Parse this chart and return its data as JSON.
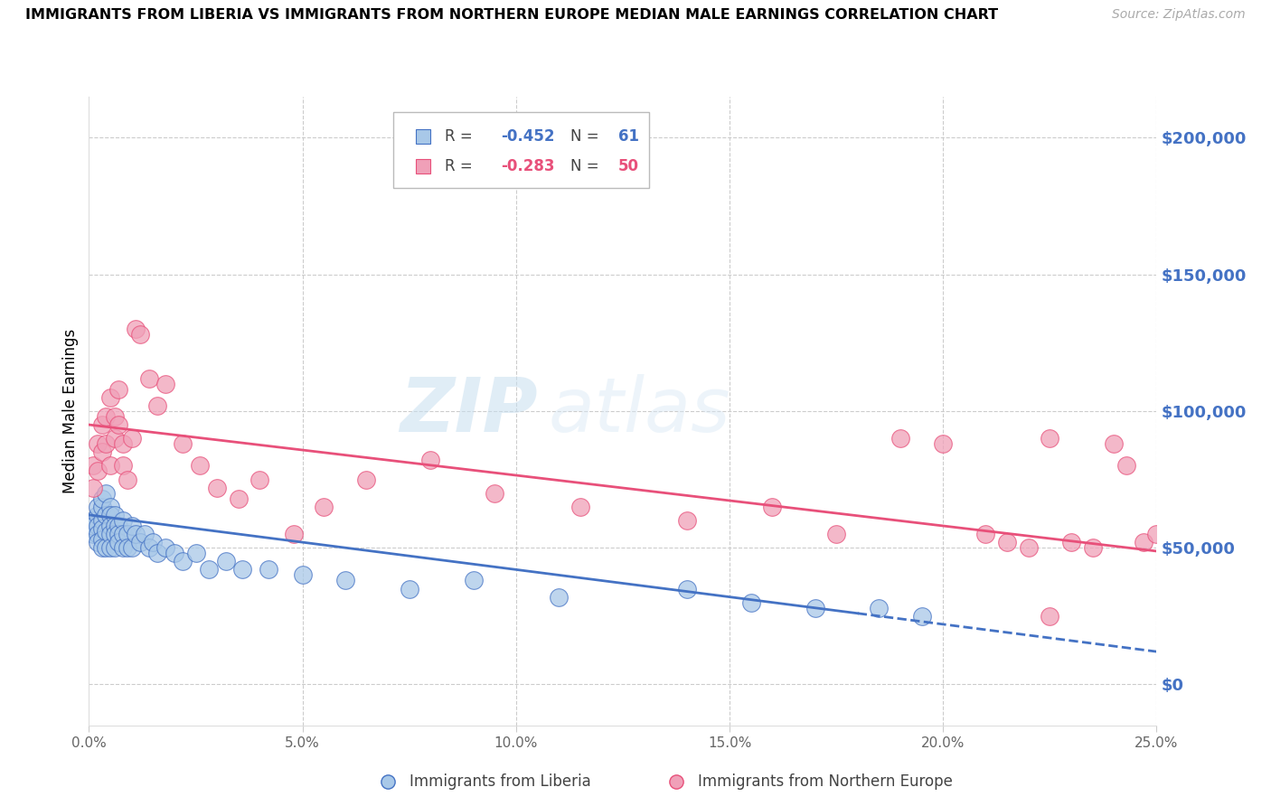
{
  "title": "IMMIGRANTS FROM LIBERIA VS IMMIGRANTS FROM NORTHERN EUROPE MEDIAN MALE EARNINGS CORRELATION CHART",
  "source": "Source: ZipAtlas.com",
  "ylabel": "Median Male Earnings",
  "r_liberia": -0.452,
  "n_liberia": 61,
  "r_northern": -0.283,
  "n_northern": 50,
  "color_liberia": "#a8c8e8",
  "color_northern": "#f0a0b8",
  "color_liberia_line": "#4472C4",
  "color_northern_line": "#E8507A",
  "color_right_axis": "#4472C4",
  "yticks": [
    0,
    50000,
    100000,
    150000,
    200000
  ],
  "xlim": [
    0.0,
    0.25
  ],
  "ylim": [
    -15000,
    215000
  ],
  "watermark_zip": "ZIP",
  "watermark_atlas": "atlas",
  "liberia_x": [
    0.001,
    0.001,
    0.001,
    0.002,
    0.002,
    0.002,
    0.002,
    0.002,
    0.003,
    0.003,
    0.003,
    0.003,
    0.003,
    0.003,
    0.004,
    0.004,
    0.004,
    0.004,
    0.005,
    0.005,
    0.005,
    0.005,
    0.005,
    0.006,
    0.006,
    0.006,
    0.006,
    0.007,
    0.007,
    0.007,
    0.008,
    0.008,
    0.008,
    0.009,
    0.009,
    0.01,
    0.01,
    0.011,
    0.012,
    0.013,
    0.014,
    0.015,
    0.016,
    0.018,
    0.02,
    0.022,
    0.025,
    0.028,
    0.032,
    0.036,
    0.042,
    0.05,
    0.06,
    0.075,
    0.09,
    0.11,
    0.14,
    0.155,
    0.17,
    0.185,
    0.195
  ],
  "liberia_y": [
    55000,
    60000,
    58000,
    62000,
    65000,
    58000,
    55000,
    52000,
    60000,
    65000,
    68000,
    57000,
    53000,
    50000,
    70000,
    62000,
    56000,
    50000,
    65000,
    62000,
    58000,
    55000,
    50000,
    62000,
    58000,
    55000,
    50000,
    58000,
    55000,
    52000,
    60000,
    55000,
    50000,
    55000,
    50000,
    58000,
    50000,
    55000,
    52000,
    55000,
    50000,
    52000,
    48000,
    50000,
    48000,
    45000,
    48000,
    42000,
    45000,
    42000,
    42000,
    40000,
    38000,
    35000,
    38000,
    32000,
    35000,
    30000,
    28000,
    28000,
    25000
  ],
  "northern_x": [
    0.001,
    0.001,
    0.002,
    0.002,
    0.003,
    0.003,
    0.004,
    0.004,
    0.005,
    0.005,
    0.006,
    0.006,
    0.007,
    0.007,
    0.008,
    0.008,
    0.009,
    0.01,
    0.011,
    0.012,
    0.014,
    0.016,
    0.018,
    0.022,
    0.026,
    0.03,
    0.035,
    0.04,
    0.048,
    0.055,
    0.065,
    0.08,
    0.095,
    0.115,
    0.14,
    0.16,
    0.175,
    0.19,
    0.2,
    0.21,
    0.215,
    0.22,
    0.225,
    0.225,
    0.23,
    0.235,
    0.24,
    0.243,
    0.247,
    0.25
  ],
  "northern_y": [
    72000,
    80000,
    78000,
    88000,
    85000,
    95000,
    88000,
    98000,
    80000,
    105000,
    90000,
    98000,
    95000,
    108000,
    88000,
    80000,
    75000,
    90000,
    130000,
    128000,
    112000,
    102000,
    110000,
    88000,
    80000,
    72000,
    68000,
    75000,
    55000,
    65000,
    75000,
    82000,
    70000,
    65000,
    60000,
    65000,
    55000,
    90000,
    88000,
    55000,
    52000,
    50000,
    25000,
    90000,
    52000,
    50000,
    88000,
    80000,
    52000,
    55000
  ]
}
